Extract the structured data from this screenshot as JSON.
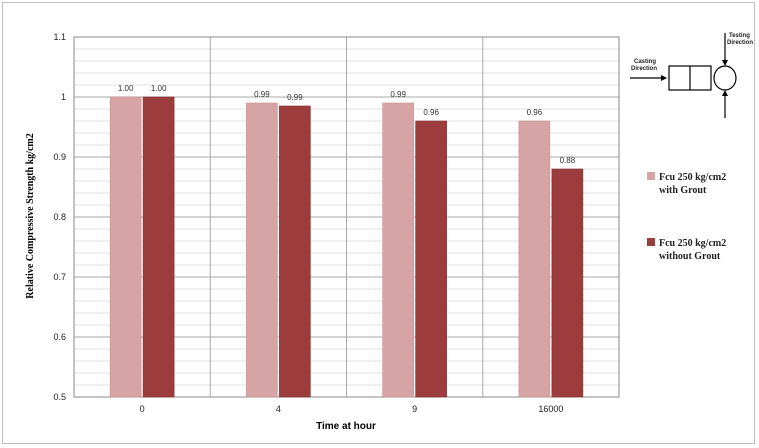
{
  "chart_data": {
    "type": "bar",
    "categories": [
      "0",
      "4",
      "9",
      "16000"
    ],
    "series": [
      {
        "name": "Fcu 250 kg/cm2 with Grout",
        "values": [
          1.0,
          0.99,
          0.99,
          0.96
        ],
        "labels": [
          "1.00",
          "0.99",
          "0.99",
          "0.96"
        ],
        "color": "#d6a4a4"
      },
      {
        "name": "Fcu 250 kg/cm2 without Grout",
        "values": [
          1.0,
          0.985,
          0.96,
          0.88
        ],
        "labels": [
          "1.00",
          "0.99",
          "0.96",
          "0.88"
        ],
        "color": "#9c3c3c"
      }
    ],
    "yticks": [
      "0.5",
      "0.6",
      "0.7",
      "0.8",
      "0.9",
      "1",
      "1.1"
    ],
    "ylim": [
      0.5,
      1.1
    ],
    "xlabel": "Time at hour",
    "ylabel": "Relative Compressive Strength kg/cm2",
    "grid": true,
    "legend_position": "right"
  },
  "legend": {
    "with_grout": {
      "line1": "Fcu 250 kg/cm2",
      "line2": "with Grout"
    },
    "without_grout": {
      "line1": "Fcu 250 kg/cm2",
      "line2": "without Grout"
    }
  },
  "diagram": {
    "casting_line1": "Casting",
    "casting_line2": "Direction",
    "testing_line1": "Testing",
    "testing_line2": "Direction"
  }
}
